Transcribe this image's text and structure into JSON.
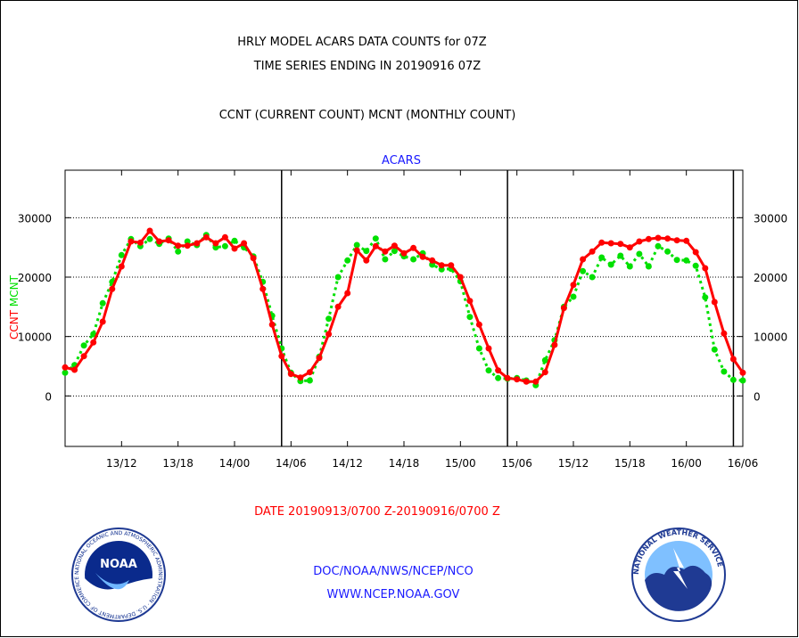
{
  "header": {
    "line1": "HRLY MODEL ACARS DATA COUNTS for 07Z",
    "line2": "TIME SERIES ENDING IN 20190916 07Z",
    "line3": "CCNT (CURRENT COUNT) MCNT (MONTHLY COUNT)"
  },
  "footer": {
    "date_range": "DATE 20190913/0700 Z-20190916/0700 Z",
    "org": "DOC/NOAA/NWS/NCEP/NCO",
    "url": "WWW.NCEP.NOAA.GOV"
  },
  "logos": {
    "noaa_text": "NOAA",
    "noaa_ring": "NATIONAL OCEANIC AND ATMOSPHERIC ADMINISTRATION · U.S. DEPARTMENT OF COMMERCE",
    "nws_ring": "NATIONAL WEATHER SERVICE"
  },
  "colors": {
    "ccnt": "#ff0000",
    "mcnt": "#00e000",
    "title_blue": "#1a1aff",
    "label_red": "#ff0000",
    "axes": "#000000"
  },
  "chart_data": {
    "type": "line",
    "title": "ACARS",
    "ylabel_parts": [
      {
        "text": "CCNT",
        "color": "#ff0000"
      },
      {
        "text": "MCNT",
        "color": "#00e000"
      }
    ],
    "x_unit": "hours from 20190913/0700 Z",
    "x_range": [
      0,
      72
    ],
    "x_ticks": [
      {
        "x": 6,
        "label": "13/12"
      },
      {
        "x": 12,
        "label": "13/18"
      },
      {
        "x": 18,
        "label": "14/00"
      },
      {
        "x": 24,
        "label": "14/06"
      },
      {
        "x": 30,
        "label": "14/12"
      },
      {
        "x": 36,
        "label": "14/18"
      },
      {
        "x": 42,
        "label": "15/00"
      },
      {
        "x": 48,
        "label": "15/06"
      },
      {
        "x": 54,
        "label": "15/12"
      },
      {
        "x": 60,
        "label": "15/18"
      },
      {
        "x": 66,
        "label": "16/00"
      },
      {
        "x": 72,
        "label": "16/06"
      }
    ],
    "day_lines": [
      23,
      47,
      71
    ],
    "y_range": [
      -8500,
      38000
    ],
    "y_ticks": [
      0,
      10000,
      20000,
      30000
    ],
    "y_tick_labels": [
      "0",
      "10000",
      "20000",
      "30000"
    ],
    "grid": "horizontal dotted at y ticks",
    "series": [
      {
        "key": "CCNT",
        "color": "#ff0000",
        "values": [
          4800,
          4400,
          6700,
          9000,
          12500,
          18000,
          21800,
          26000,
          25800,
          27800,
          26000,
          26200,
          25300,
          25300,
          25700,
          26700,
          25700,
          26700,
          24800,
          25700,
          23200,
          18000,
          12000,
          6700,
          3700,
          3100,
          4000,
          6400,
          10400,
          15000,
          17300,
          24500,
          22800,
          25200,
          24300,
          25300,
          24000,
          24900,
          23400,
          22800,
          22000,
          22000,
          20000,
          16000,
          12000,
          8000,
          4300,
          3000,
          2800,
          2400,
          2400,
          4000,
          8600,
          14800,
          18700,
          23000,
          24300,
          25800,
          25700,
          25600,
          25000,
          26000,
          26400,
          26600,
          26500,
          26200,
          26100,
          24200,
          21500,
          15800,
          10500,
          6200,
          3900
        ]
      },
      {
        "key": "MCNT",
        "color": "#00e000",
        "values": [
          3900,
          5200,
          8500,
          10400,
          15600,
          19200,
          23700,
          26400,
          25200,
          26400,
          25600,
          26500,
          24300,
          26000,
          25400,
          27100,
          25000,
          25200,
          26100,
          25000,
          23500,
          19200,
          13500,
          8000,
          3900,
          2500,
          2600,
          6600,
          13000,
          20000,
          22800,
          25400,
          24400,
          26500,
          23000,
          24400,
          23500,
          23000,
          24000,
          22100,
          21300,
          21400,
          19300,
          13300,
          8000,
          4300,
          3000,
          2900,
          3000,
          2600,
          1800,
          6000,
          9400,
          15000,
          16700,
          21000,
          20000,
          23300,
          22100,
          23600,
          21800,
          23900,
          21800,
          25200,
          24300,
          22900,
          22800,
          21900,
          16600,
          7800,
          4100,
          2700,
          2600
        ]
      }
    ]
  }
}
